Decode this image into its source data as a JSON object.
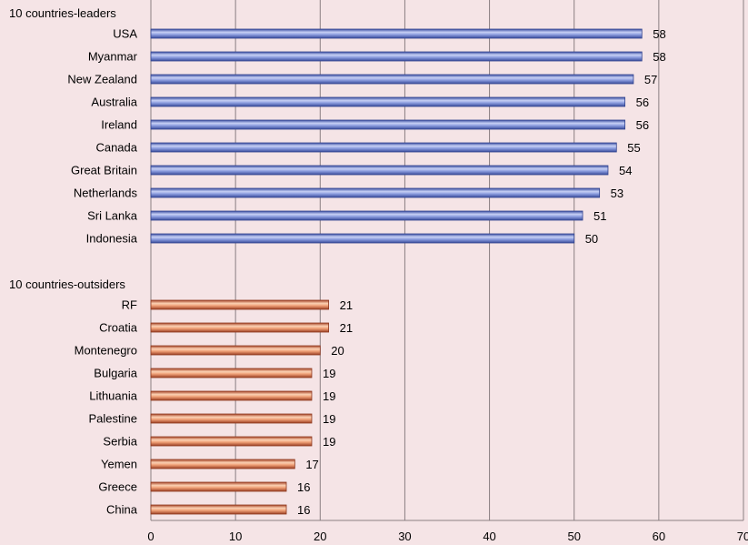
{
  "chart_data": {
    "type": "bar",
    "orientation": "horizontal",
    "xlim": [
      0,
      70
    ],
    "x_ticks": [
      0,
      10,
      20,
      30,
      40,
      50,
      60,
      70
    ],
    "grid": true,
    "groups": [
      {
        "label": "10 countries-leaders",
        "color": "#7b8fd6",
        "categories": [
          "USA",
          "Myanmar",
          "New Zealand",
          "Australia",
          "Ireland",
          "Canada",
          "Great Britain",
          "Netherlands",
          "Sri Lanka",
          "Indonesia"
        ],
        "values": [
          58,
          58,
          57,
          56,
          56,
          55,
          54,
          53,
          51,
          50
        ]
      },
      {
        "label": "10 countries-outsiders",
        "color": "#e8956c",
        "categories": [
          "RF",
          "Croatia",
          "Montenegro",
          "Bulgaria",
          "Lithuania",
          "Palestine",
          "Serbia",
          "Yemen",
          "Greece",
          "China"
        ],
        "values": [
          21,
          21,
          20,
          19,
          19,
          19,
          19,
          17,
          16,
          16
        ]
      }
    ]
  }
}
